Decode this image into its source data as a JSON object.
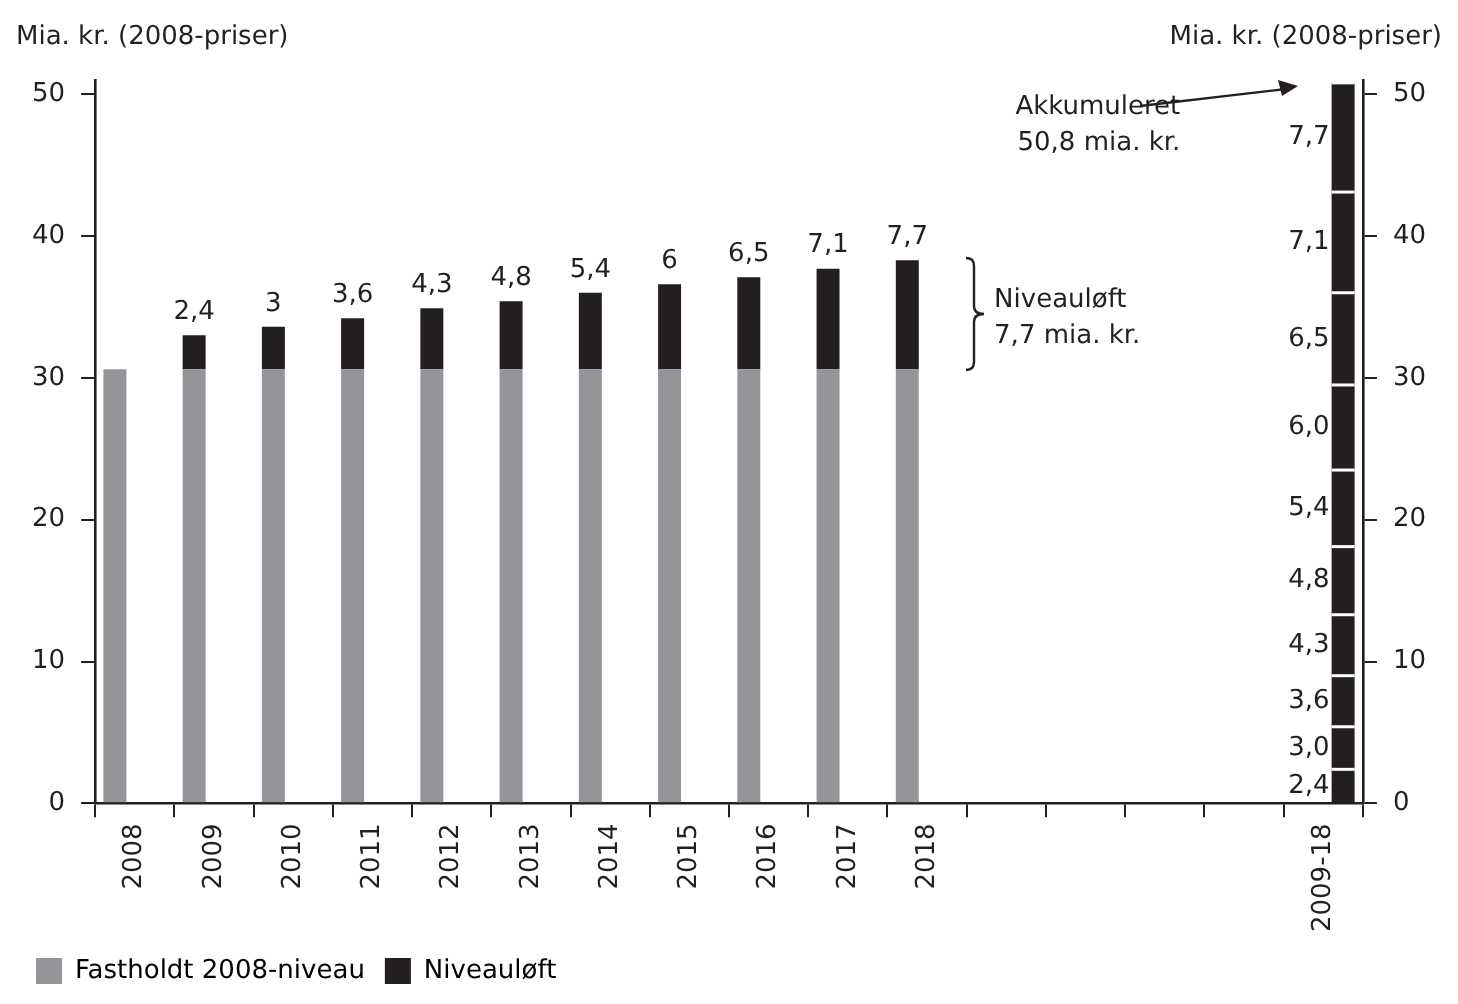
{
  "chart_data": {
    "type": "bar",
    "stacked": true,
    "ylabel": "Mia. kr. (2008-priser)",
    "y2label": "Mia. kr. (2008-priser)",
    "categories": [
      "2008",
      "2009",
      "2010",
      "2011",
      "2012",
      "2013",
      "2014",
      "2015",
      "2016",
      "2017",
      "2018",
      null,
      null,
      null,
      null,
      "2009-18"
    ],
    "ylim": [
      0,
      51
    ],
    "yticks": [
      0,
      10,
      20,
      30,
      40,
      50
    ],
    "y2lim": [
      0,
      51
    ],
    "y2ticks": [
      0,
      10,
      20,
      30,
      40,
      50
    ],
    "grid": false,
    "legend": "bottom left",
    "series": [
      {
        "name": "Fastholdt 2008-niveau",
        "color": "#939598",
        "values": [
          30.6,
          30.6,
          30.6,
          30.6,
          30.6,
          30.6,
          30.6,
          30.6,
          30.6,
          30.6,
          30.6,
          null,
          null,
          null,
          null,
          null
        ]
      },
      {
        "name": "Niveauløft",
        "color": "#231f20",
        "values": [
          null,
          2.4,
          3,
          3.6,
          4.3,
          4.8,
          5.4,
          6,
          6.5,
          7.1,
          7.7,
          null,
          null,
          null,
          null,
          null
        ],
        "value_labels": [
          null,
          "2,4",
          "3",
          "3,6",
          "4,3",
          "4,8",
          "5,4",
          "6",
          "6,5",
          "7,1",
          "7,7",
          null,
          null,
          null,
          null,
          null
        ]
      },
      {
        "color": "#231f20",
        "axis": "y2",
        "values": [
          null,
          null,
          null,
          null,
          null,
          null,
          null,
          null,
          null,
          null,
          null,
          null,
          null,
          null,
          null,
          2.4
        ],
        "value_labels": [
          null,
          null,
          null,
          null,
          null,
          null,
          null,
          null,
          null,
          null,
          null,
          null,
          null,
          null,
          null,
          "2,4"
        ]
      },
      {
        "color": "#231f20",
        "axis": "y2",
        "values": [
          null,
          null,
          null,
          null,
          null,
          null,
          null,
          null,
          null,
          null,
          null,
          null,
          null,
          null,
          null,
          3.0
        ],
        "value_labels": [
          null,
          null,
          null,
          null,
          null,
          null,
          null,
          null,
          null,
          null,
          null,
          null,
          null,
          null,
          null,
          "3,0"
        ]
      },
      {
        "color": "#231f20",
        "axis": "y2",
        "values": [
          null,
          null,
          null,
          null,
          null,
          null,
          null,
          null,
          null,
          null,
          null,
          null,
          null,
          null,
          null,
          3.6
        ],
        "value_labels": [
          null,
          null,
          null,
          null,
          null,
          null,
          null,
          null,
          null,
          null,
          null,
          null,
          null,
          null,
          null,
          "3,6"
        ]
      },
      {
        "color": "#231f20",
        "axis": "y2",
        "values": [
          null,
          null,
          null,
          null,
          null,
          null,
          null,
          null,
          null,
          null,
          null,
          null,
          null,
          null,
          null,
          4.3
        ],
        "value_labels": [
          null,
          null,
          null,
          null,
          null,
          null,
          null,
          null,
          null,
          null,
          null,
          null,
          null,
          null,
          null,
          "4,3"
        ]
      },
      {
        "color": "#231f20",
        "axis": "y2",
        "values": [
          null,
          null,
          null,
          null,
          null,
          null,
          null,
          null,
          null,
          null,
          null,
          null,
          null,
          null,
          null,
          4.8
        ],
        "value_labels": [
          null,
          null,
          null,
          null,
          null,
          null,
          null,
          null,
          null,
          null,
          null,
          null,
          null,
          null,
          null,
          "4,8"
        ]
      },
      {
        "color": "#231f20",
        "axis": "y2",
        "values": [
          null,
          null,
          null,
          null,
          null,
          null,
          null,
          null,
          null,
          null,
          null,
          null,
          null,
          null,
          null,
          5.4
        ],
        "value_labels": [
          null,
          null,
          null,
          null,
          null,
          null,
          null,
          null,
          null,
          null,
          null,
          null,
          null,
          null,
          null,
          "5,4"
        ]
      },
      {
        "color": "#231f20",
        "axis": "y2",
        "values": [
          null,
          null,
          null,
          null,
          null,
          null,
          null,
          null,
          null,
          null,
          null,
          null,
          null,
          null,
          null,
          6.0
        ],
        "value_labels": [
          null,
          null,
          null,
          null,
          null,
          null,
          null,
          null,
          null,
          null,
          null,
          null,
          null,
          null,
          null,
          "6,0"
        ]
      },
      {
        "color": "#231f20",
        "axis": "y2",
        "values": [
          null,
          null,
          null,
          null,
          null,
          null,
          null,
          null,
          null,
          null,
          null,
          null,
          null,
          null,
          null,
          6.5
        ],
        "value_labels": [
          null,
          null,
          null,
          null,
          null,
          null,
          null,
          null,
          null,
          null,
          null,
          null,
          null,
          null,
          null,
          "6,5"
        ]
      },
      {
        "color": "#231f20",
        "axis": "y2",
        "values": [
          null,
          null,
          null,
          null,
          null,
          null,
          null,
          null,
          null,
          null,
          null,
          null,
          null,
          null,
          null,
          7.1
        ],
        "value_labels": [
          null,
          null,
          null,
          null,
          null,
          null,
          null,
          null,
          null,
          null,
          null,
          null,
          null,
          null,
          null,
          "7,1"
        ]
      },
      {
        "color": "#231f20",
        "axis": "y2",
        "values": [
          null,
          null,
          null,
          null,
          null,
          null,
          null,
          null,
          null,
          null,
          null,
          null,
          null,
          null,
          null,
          7.7
        ],
        "value_labels": [
          null,
          null,
          null,
          null,
          null,
          null,
          null,
          null,
          null,
          null,
          null,
          null,
          null,
          null,
          null,
          "7,7"
        ]
      }
    ],
    "annotations": [
      "Akkumuleret\n50,8 mia. kr.",
      {
        "text": "Niveauløft\n7,7 mia. kr.",
        "x": "2018",
        "y": 34.45
      }
    ]
  }
}
